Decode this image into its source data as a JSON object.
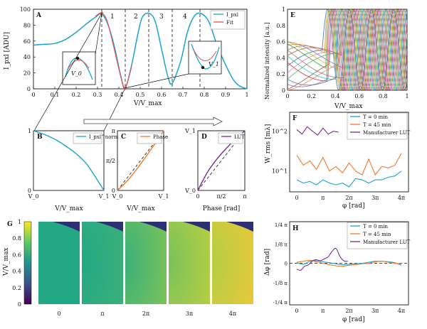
{
  "chart_data": [
    {
      "panel": "A",
      "type": "line",
      "ylabel": "I_pxl [ADU]",
      "xlabel": "V/V_max",
      "xlim": [
        0,
        1
      ],
      "ylim": [
        0,
        100
      ],
      "xticks": [
        "0",
        "0.1",
        "0.2",
        "0.3",
        "0.4",
        "0.5",
        "0.6",
        "0.7",
        "0.8",
        "0.9",
        "1"
      ],
      "yticks": [
        "0",
        "20",
        "40",
        "60",
        "80",
        "100"
      ],
      "legend": [
        "I_pxl",
        "Fit"
      ],
      "legend_position": "top-right",
      "region_labels": [
        "1",
        "2",
        "3",
        "4"
      ],
      "region_boundaries_x": [
        0.32,
        0.43,
        0.54,
        0.65,
        0.78
      ],
      "inset_labels": [
        "V_0",
        "V_1"
      ],
      "series": [
        {
          "name": "I_pxl",
          "color": "#1aa3cf",
          "x": [
            0,
            0.05,
            0.1,
            0.15,
            0.2,
            0.25,
            0.29,
            0.32,
            0.35,
            0.38,
            0.41,
            0.43,
            0.46,
            0.49,
            0.51,
            0.54,
            0.57,
            0.6,
            0.63,
            0.65,
            0.69,
            0.72,
            0.75,
            0.78,
            0.82,
            0.86,
            0.9,
            0.94,
            0.97,
            1
          ],
          "y": [
            55,
            56,
            57,
            62,
            71,
            82,
            90,
            94,
            80,
            52,
            15,
            1,
            30,
            70,
            90,
            95,
            85,
            50,
            15,
            7,
            35,
            70,
            90,
            95,
            85,
            55,
            30,
            10,
            3,
            0
          ]
        },
        {
          "name": "Fit",
          "color": "#e8504f",
          "x": [
            0.29,
            0.32,
            0.35,
            0.41,
            0.43,
            0.46
          ],
          "y": [
            91,
            95,
            81,
            14,
            1,
            28
          ]
        }
      ]
    },
    {
      "panel": "B",
      "type": "line",
      "xlabel": "V/V_max",
      "xticks": [
        "V_0",
        "V_1"
      ],
      "yticks": [
        "0",
        "1"
      ],
      "legend": [
        "I_pxl^norm"
      ],
      "series": [
        {
          "name": "I_pxl^norm",
          "color": "#1aa3cf",
          "x": [
            0,
            0.15,
            0.3,
            0.45,
            0.6,
            0.75,
            0.85,
            1
          ],
          "y": [
            1,
            0.94,
            0.86,
            0.75,
            0.62,
            0.45,
            0.28,
            0
          ]
        }
      ]
    },
    {
      "panel": "C",
      "type": "line",
      "xlabel": "V/V_max",
      "xticks": [
        "V_0",
        "V_1"
      ],
      "yticks": [
        "0",
        "π/2",
        "π"
      ],
      "legend": [
        "Phase"
      ],
      "series": [
        {
          "name": "Phase",
          "color": "#f07a2c",
          "x": [
            0,
            0.2,
            0.4,
            0.6,
            0.8,
            1
          ],
          "y": [
            0,
            0.15,
            0.34,
            0.55,
            0.77,
            1
          ]
        }
      ]
    },
    {
      "panel": "D",
      "type": "line",
      "xlabel": "Phase [rad]",
      "xticks": [
        "0",
        "π/2",
        "π"
      ],
      "yticks": [
        "V_0",
        "V_1"
      ],
      "legend": [
        "LUT"
      ],
      "series": [
        {
          "name": "LUT",
          "color": "#7b2a8e",
          "x": [
            0,
            0.2,
            0.4,
            0.6,
            0.8,
            1
          ],
          "y": [
            0,
            0.3,
            0.52,
            0.7,
            0.86,
            1
          ]
        }
      ]
    },
    {
      "panel": "E",
      "type": "line",
      "ylabel": "Normalized intensity [a.u.]",
      "xlabel": "V/V_max",
      "xlim": [
        0,
        1
      ],
      "ylim": [
        0,
        1
      ],
      "xticks": [
        "0",
        "0.2",
        "0.4",
        "0.6",
        "0.8",
        "1"
      ],
      "yticks": [
        "0",
        "0.2",
        "0.4",
        "0.6",
        "0.8",
        "1"
      ]
    },
    {
      "panel": "F",
      "type": "line",
      "ylabel": "W_rms [mλ]",
      "xlabel": "φ [rad]",
      "yscale": "log",
      "ylim": [
        3,
        300
      ],
      "xticks": [
        "0",
        "π",
        "2π",
        "3π",
        "4π"
      ],
      "yticks": [
        "10^1",
        "10^2"
      ],
      "legend": [
        "T = 0 min",
        "T = 45 min",
        "Manufacturer LUT"
      ],
      "legend_position": "top-right",
      "series": [
        {
          "name": "T = 0 min",
          "color": "#1aa3cf",
          "x": [
            0,
            0.25,
            0.5,
            0.75,
            1,
            1.25,
            1.5,
            1.75,
            2,
            2.25,
            2.5,
            2.75,
            3,
            3.25,
            3.5,
            3.75,
            4
          ],
          "y": [
            6,
            5,
            5.5,
            4.5,
            6,
            5,
            4.5,
            5,
            4,
            6.5,
            6,
            5,
            6,
            6,
            7,
            7.5,
            10
          ]
        },
        {
          "name": "T = 45 min",
          "color": "#f07a2c",
          "x": [
            0,
            0.25,
            0.5,
            0.75,
            1,
            1.25,
            1.5,
            1.75,
            2,
            2.25,
            2.5,
            2.75,
            3,
            3.25,
            3.5,
            3.75,
            4
          ],
          "y": [
            25,
            14,
            18,
            11,
            22,
            10,
            13,
            9,
            16,
            10,
            8,
            20,
            8,
            13,
            12,
            14,
            28
          ]
        },
        {
          "name": "Manufacturer LUT",
          "color": "#7b2a8e",
          "x": [
            0,
            0.2,
            0.4,
            0.6,
            0.8,
            1,
            1.2,
            1.4,
            1.6
          ],
          "y": [
            110,
            85,
            130,
            100,
            80,
            120,
            85,
            100,
            95
          ]
        }
      ]
    },
    {
      "panel": "G",
      "type": "heatmap",
      "ylabel": "V/V_max",
      "yticks": [
        "0",
        "0.2",
        "0.4",
        "0.6",
        "0.8",
        "1"
      ],
      "columns": [
        "0",
        "π",
        "2π",
        "3π",
        "4π"
      ],
      "colormap": "viridis",
      "colorbar_range": [
        0,
        1
      ]
    },
    {
      "panel": "H",
      "type": "line",
      "ylabel": "Δφ [rad]",
      "xlabel": "φ [rad]",
      "xticks": [
        "0",
        "π",
        "2π",
        "3π",
        "4π"
      ],
      "yticks": [
        "-1/4 π",
        "-1/8 π",
        "0",
        "1/8 π",
        "1/4 π"
      ],
      "legend": [
        "T = 0 min",
        "T = 45 min",
        "Manufacturer LUT"
      ],
      "legend_position": "top-right",
      "series": [
        {
          "name": "T = 0 min",
          "color": "#1aa3cf",
          "x": [
            0,
            0.25,
            0.5,
            0.75,
            1,
            1.25,
            1.5,
            1.75,
            2,
            2.25,
            2.5,
            2.75,
            3,
            3.25,
            3.5,
            3.75,
            4
          ],
          "y": [
            0.01,
            -0.02,
            0.04,
            0.05,
            0.03,
            0.01,
            -0.01,
            -0.03,
            -0.02,
            -0.01,
            0,
            0.02,
            0.04,
            0.04,
            0.03,
            0.01,
            -0.04
          ]
        },
        {
          "name": "T = 45 min",
          "color": "#f07a2c",
          "x": [
            0,
            0.25,
            0.5,
            0.75,
            1,
            1.25,
            1.5,
            1.75,
            2,
            2.25,
            2.5,
            2.75,
            3,
            3.25,
            3.5,
            3.75,
            4
          ],
          "y": [
            0.02,
            0.04,
            0.06,
            0.03,
            0,
            -0.03,
            -0.05,
            -0.06,
            -0.04,
            -0.03,
            -0.01,
            0,
            0.03,
            0.04,
            0.02,
            0,
            -0.01
          ]
        },
        {
          "name": "Manufacturer LUT",
          "color": "#7b2a8e",
          "x": [
            0,
            0.15,
            0.3,
            0.45,
            0.6,
            0.75,
            0.9,
            1.05,
            1.2,
            1.35,
            1.5,
            1.65,
            1.8,
            1.95
          ],
          "y": [
            -0.12,
            -0.14,
            -0.06,
            -0.03,
            0.05,
            0.07,
            0.05,
            0.09,
            0.13,
            0.24,
            0.3,
            0.14,
            0.05,
            0.04
          ]
        }
      ]
    }
  ]
}
